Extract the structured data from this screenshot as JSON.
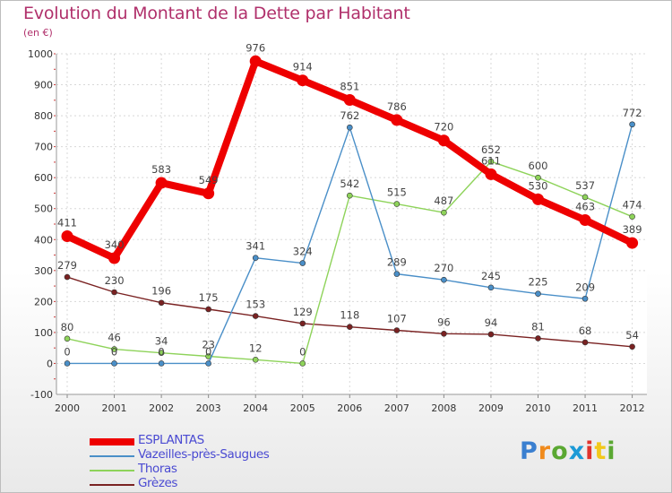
{
  "title": "Evolution du Montant de la Dette par Habitant",
  "unit": "(en €)",
  "logo": {
    "text": "Proxiti",
    "colors": [
      "#3a7fd0",
      "#f08a1c",
      "#5aa832",
      "#1c9ad6",
      "#e0332c",
      "#f2c81b",
      "#5aa832"
    ]
  },
  "chart_data": {
    "type": "line",
    "x": [
      "2000",
      "2001",
      "2002",
      "2003",
      "2004",
      "2005",
      "2006",
      "2007",
      "2008",
      "2009",
      "2010",
      "2011",
      "2012"
    ],
    "ylim": [
      -100,
      1000
    ],
    "yticks": [
      -100,
      0,
      100,
      200,
      300,
      400,
      500,
      600,
      700,
      800,
      900,
      1000
    ],
    "grid": true,
    "legend": "bottom-left",
    "series": [
      {
        "name": "ESPLANTAS",
        "color": "#ee0000",
        "values": [
          411,
          340,
          583,
          549,
          976,
          914,
          851,
          786,
          720,
          611,
          530,
          463,
          389
        ]
      },
      {
        "name": "Vazeilles-près-Saugues",
        "color": "#4a8fc8",
        "values": [
          0,
          0,
          0,
          0,
          341,
          324,
          762,
          289,
          270,
          245,
          225,
          209,
          772
        ]
      },
      {
        "name": "Thoras",
        "color": "#8ed35a",
        "values": [
          80,
          46,
          34,
          23,
          12,
          0,
          542,
          515,
          487,
          652,
          600,
          537,
          474
        ]
      },
      {
        "name": "Grèzes",
        "color": "#7a2222",
        "values": [
          279,
          230,
          196,
          175,
          153,
          129,
          118,
          107,
          96,
          94,
          81,
          68,
          54
        ]
      }
    ]
  }
}
